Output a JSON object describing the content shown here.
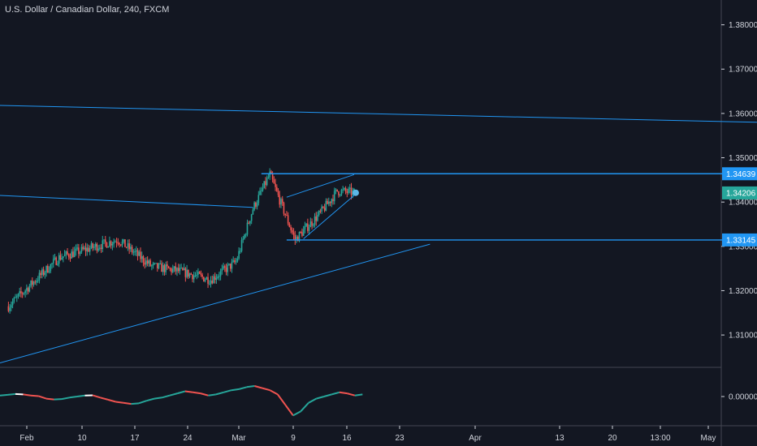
{
  "header": {
    "title": "U.S. Dollar / Canadian Dollar, 240, FXCM"
  },
  "colors": {
    "background": "#131722",
    "up": "#26a69a",
    "down": "#ef5350",
    "trendline": "#2196f3",
    "axis_text": "#d1d4dc",
    "badge_blue": "#2196f3",
    "badge_teal": "#26a69a"
  },
  "chart_data": [
    {
      "type": "candlestick",
      "title": "U.S. Dollar / Canadian Dollar, 240, FXCM",
      "y_ticks": [
        "1.38000",
        "1.37000",
        "1.36000",
        "1.35000",
        "1.34000",
        "1.33000",
        "1.32000",
        "1.31000"
      ],
      "y_tick_values": [
        1.38,
        1.37,
        1.36,
        1.35,
        1.34,
        1.33,
        1.32,
        1.31
      ],
      "ylim": [
        1.3027,
        1.3856
      ],
      "x_ticks": [
        "Feb",
        "10",
        "17",
        "24",
        "Mar",
        "9",
        "16",
        "23",
        "Apr",
        "13",
        "20",
        "13:00",
        "May"
      ],
      "price_labels": [
        {
          "text": "1.34639",
          "value": 1.34639,
          "color": "#2196f3"
        },
        {
          "text": "1.34206",
          "value": 1.34206,
          "color": "#26a69a"
        },
        {
          "text": "1.33145",
          "value": 1.33145,
          "color": "#2196f3"
        }
      ],
      "key_price_path": [
        {
          "x": "Jan 28",
          "y": 1.3165
        },
        {
          "x": "Feb 3",
          "y": 1.3275
        },
        {
          "x": "Feb 10",
          "y": 1.3315
        },
        {
          "x": "Feb 14",
          "y": 1.3255
        },
        {
          "x": "Feb 17",
          "y": 1.3245
        },
        {
          "x": "Feb 21",
          "y": 1.3225
        },
        {
          "x": "Feb 24",
          "y": 1.3265
        },
        {
          "x": "Feb 26",
          "y": 1.3385
        },
        {
          "x": "Feb 28",
          "y": 1.3462
        },
        {
          "x": "Mar 2",
          "y": 1.3315
        },
        {
          "x": "Mar 5",
          "y": 1.3375
        },
        {
          "x": "Mar 7",
          "y": 1.3425
        },
        {
          "x": "Mar 9",
          "y": 1.3421
        }
      ],
      "trendlines": [
        {
          "name": "upper",
          "from": {
            "x": "Jan 27",
            "y": 1.3618
          },
          "to": {
            "x": "May 3",
            "y": 1.3577
          }
        },
        {
          "name": "mid",
          "from": {
            "x": "Jan 27",
            "y": 1.3415
          },
          "to": {
            "x": "Feb 26",
            "y": 1.3388
          }
        },
        {
          "name": "support",
          "from": {
            "x": "Jan 27",
            "y": 1.3037
          },
          "to": {
            "x": "Mar 18",
            "y": 1.3305
          }
        },
        {
          "name": "resistance-h",
          "from": {
            "x": "Feb 27",
            "y": 1.34639
          },
          "to": {
            "x": "May 3",
            "y": 1.34639
          }
        },
        {
          "name": "support-h",
          "from": {
            "x": "Mar 1",
            "y": 1.33145
          },
          "to": {
            "x": "May 3",
            "y": 1.33145
          }
        },
        {
          "name": "wedge-top",
          "from": {
            "x": "Mar 1",
            "y": 1.3411
          },
          "to": {
            "x": "Mar 9",
            "y": 1.3462
          }
        },
        {
          "name": "wedge-bottom",
          "from": {
            "x": "Mar 3",
            "y": 1.3317
          },
          "to": {
            "x": "Mar 9",
            "y": 1.3415
          }
        }
      ]
    },
    {
      "type": "line",
      "name": "oscillator",
      "y_ticks": [
        "0.00000"
      ],
      "y_tick_values": [
        0
      ],
      "ylim": [
        -1,
        1
      ],
      "colors": {
        "up": "#26a69a",
        "down": "#ef5350",
        "neutral": "#ffffff"
      },
      "values": [
        0.05,
        0.08,
        0.12,
        0.1,
        0.05,
        0.02,
        -0.1,
        -0.14,
        -0.12,
        -0.05,
        0.0,
        0.05,
        0.06,
        -0.05,
        -0.15,
        -0.25,
        -0.3,
        -0.35,
        -0.32,
        -0.2,
        -0.1,
        -0.05,
        0.05,
        0.15,
        0.25,
        0.2,
        0.15,
        0.05,
        0.1,
        0.2,
        0.3,
        0.35,
        0.45,
        0.5,
        0.4,
        0.3,
        0.1,
        -0.4,
        -0.9,
        -0.7,
        -0.3,
        -0.1,
        0.0,
        0.1,
        0.2,
        0.15,
        0.05,
        0.1
      ]
    }
  ]
}
